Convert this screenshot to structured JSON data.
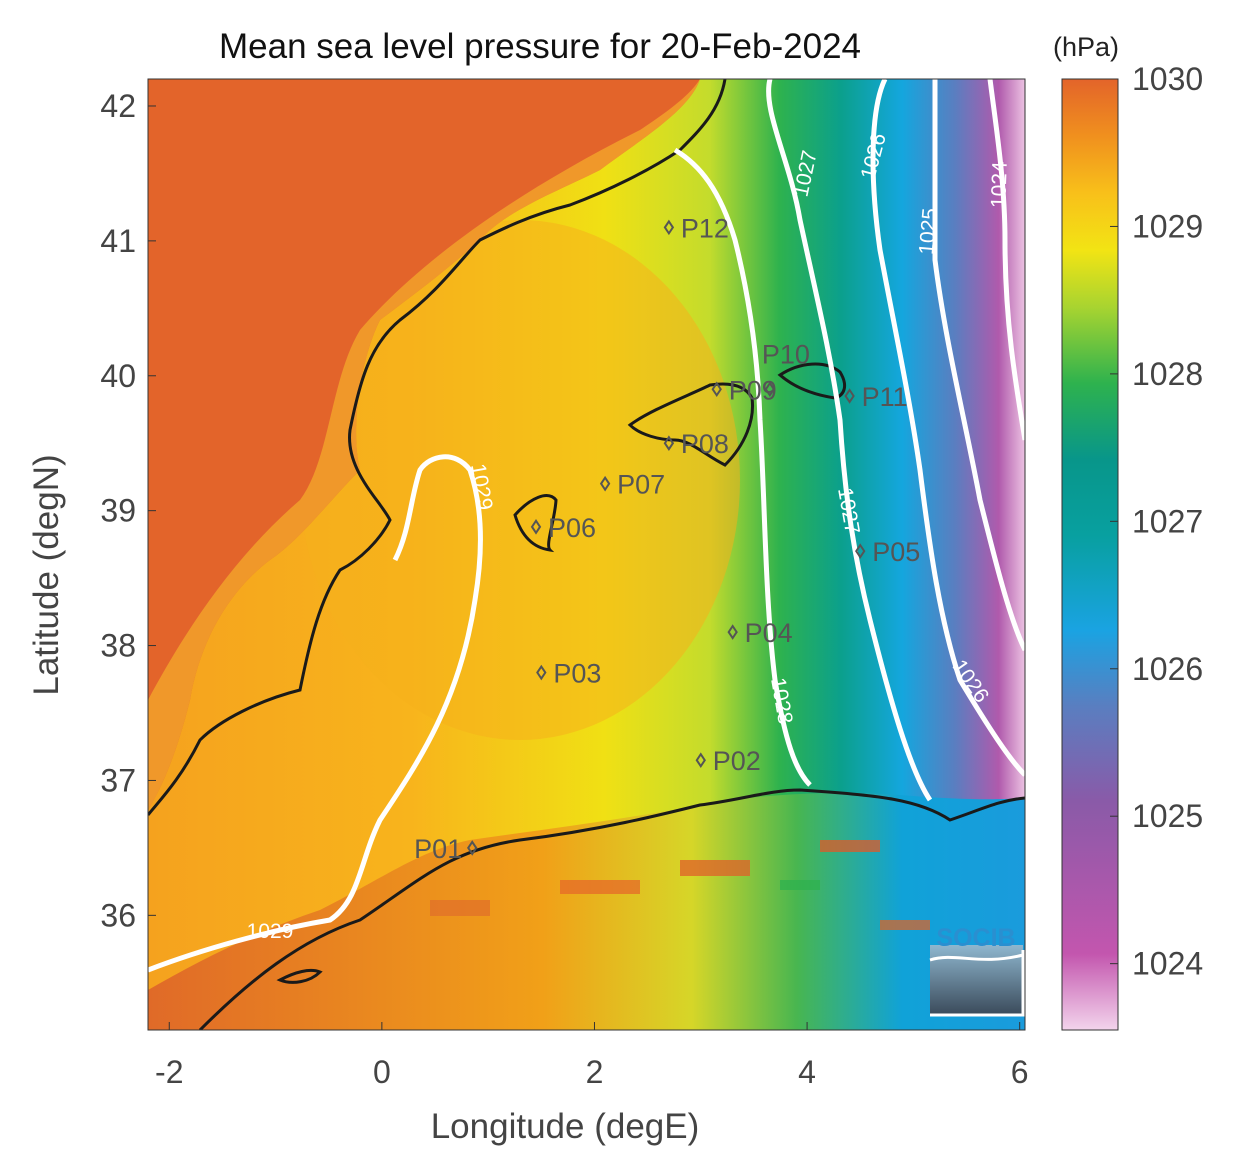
{
  "title": "Mean sea level pressure for 20-Feb-2024",
  "x_axis": {
    "label": "Longitude (degE)",
    "ticks": [
      "-2",
      "0",
      "2",
      "4",
      "6"
    ],
    "range": [
      -2.2,
      6.05
    ]
  },
  "y_axis": {
    "label": "Latitude (degN)",
    "ticks": [
      "42",
      "41",
      "40",
      "39",
      "38",
      "37",
      "36"
    ],
    "range": [
      35.15,
      42.2
    ]
  },
  "colorbar": {
    "unit": "(hPa)",
    "ticks": [
      "1030",
      "1029",
      "1028",
      "1027",
      "1026",
      "1025",
      "1024"
    ],
    "range": [
      1023.55,
      1030.0
    ],
    "colors": [
      "#f3d4ec",
      "#c356ae",
      "#8a5aa8",
      "#1aa3e2",
      "#08968a",
      "#2eb24e",
      "#f2e414",
      "#f8b81c",
      "#e3642a"
    ]
  },
  "stations": [
    {
      "id": "P01",
      "lon": 0.85,
      "lat": 36.5
    },
    {
      "id": "P02",
      "lon": 3.0,
      "lat": 37.15
    },
    {
      "id": "P03",
      "lon": 1.5,
      "lat": 37.8
    },
    {
      "id": "P04",
      "lon": 3.3,
      "lat": 38.1
    },
    {
      "id": "P05",
      "lon": 4.5,
      "lat": 38.7
    },
    {
      "id": "P06",
      "lon": 1.45,
      "lat": 38.88
    },
    {
      "id": "P07",
      "lon": 2.1,
      "lat": 39.2
    },
    {
      "id": "P08",
      "lon": 2.7,
      "lat": 39.5
    },
    {
      "id": "P09",
      "lon": 3.15,
      "lat": 39.9
    },
    {
      "id": "P10",
      "lon": 3.65,
      "lat": 39.9
    },
    {
      "id": "P11",
      "lon": 4.4,
      "lat": 39.85
    },
    {
      "id": "P12",
      "lon": 2.7,
      "lat": 41.1
    }
  ],
  "isobar_labels": [
    "1029",
    "1029",
    "1028",
    "1027",
    "1027",
    "1026",
    "1026",
    "1025",
    "1024"
  ],
  "logo": {
    "text": "SOCIB"
  }
}
